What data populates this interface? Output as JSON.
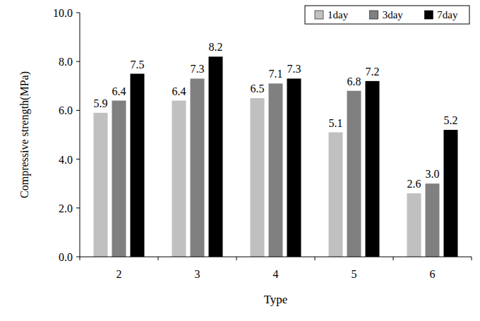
{
  "chart_data": {
    "type": "bar",
    "x_label": "Type",
    "y_label": "Compressive strength(MPa)",
    "categories": [
      "2",
      "3",
      "4",
      "5",
      "6"
    ],
    "series": [
      {
        "name": "1day",
        "color": "#c0c0c0",
        "values": [
          5.9,
          6.4,
          6.5,
          5.1,
          2.6
        ],
        "value_labels": [
          "5.9",
          "6.4",
          "6.5",
          "5.1",
          "2.6"
        ]
      },
      {
        "name": "3day",
        "color": "#808080",
        "values": [
          6.4,
          7.3,
          7.1,
          6.8,
          3.0
        ],
        "value_labels": [
          "6.4",
          "7.3",
          "7.1",
          "6.8",
          "3.0"
        ]
      },
      {
        "name": "7day",
        "color": "#000000",
        "values": [
          7.5,
          8.2,
          7.3,
          7.2,
          5.2
        ],
        "value_labels": [
          "7.5",
          "8.2",
          "7.3",
          "7.2",
          "5.2"
        ]
      }
    ],
    "ylim": [
      0,
      10
    ],
    "yticks": [
      {
        "value": 0,
        "label": "0.0"
      },
      {
        "value": 2,
        "label": "2.0"
      },
      {
        "value": 4,
        "label": "4.0"
      },
      {
        "value": 6,
        "label": "6.0"
      },
      {
        "value": 8,
        "label": "8.0"
      },
      {
        "value": 10,
        "label": "10.0"
      }
    ],
    "grid": false,
    "legend": "upper right",
    "data_labels": true
  }
}
